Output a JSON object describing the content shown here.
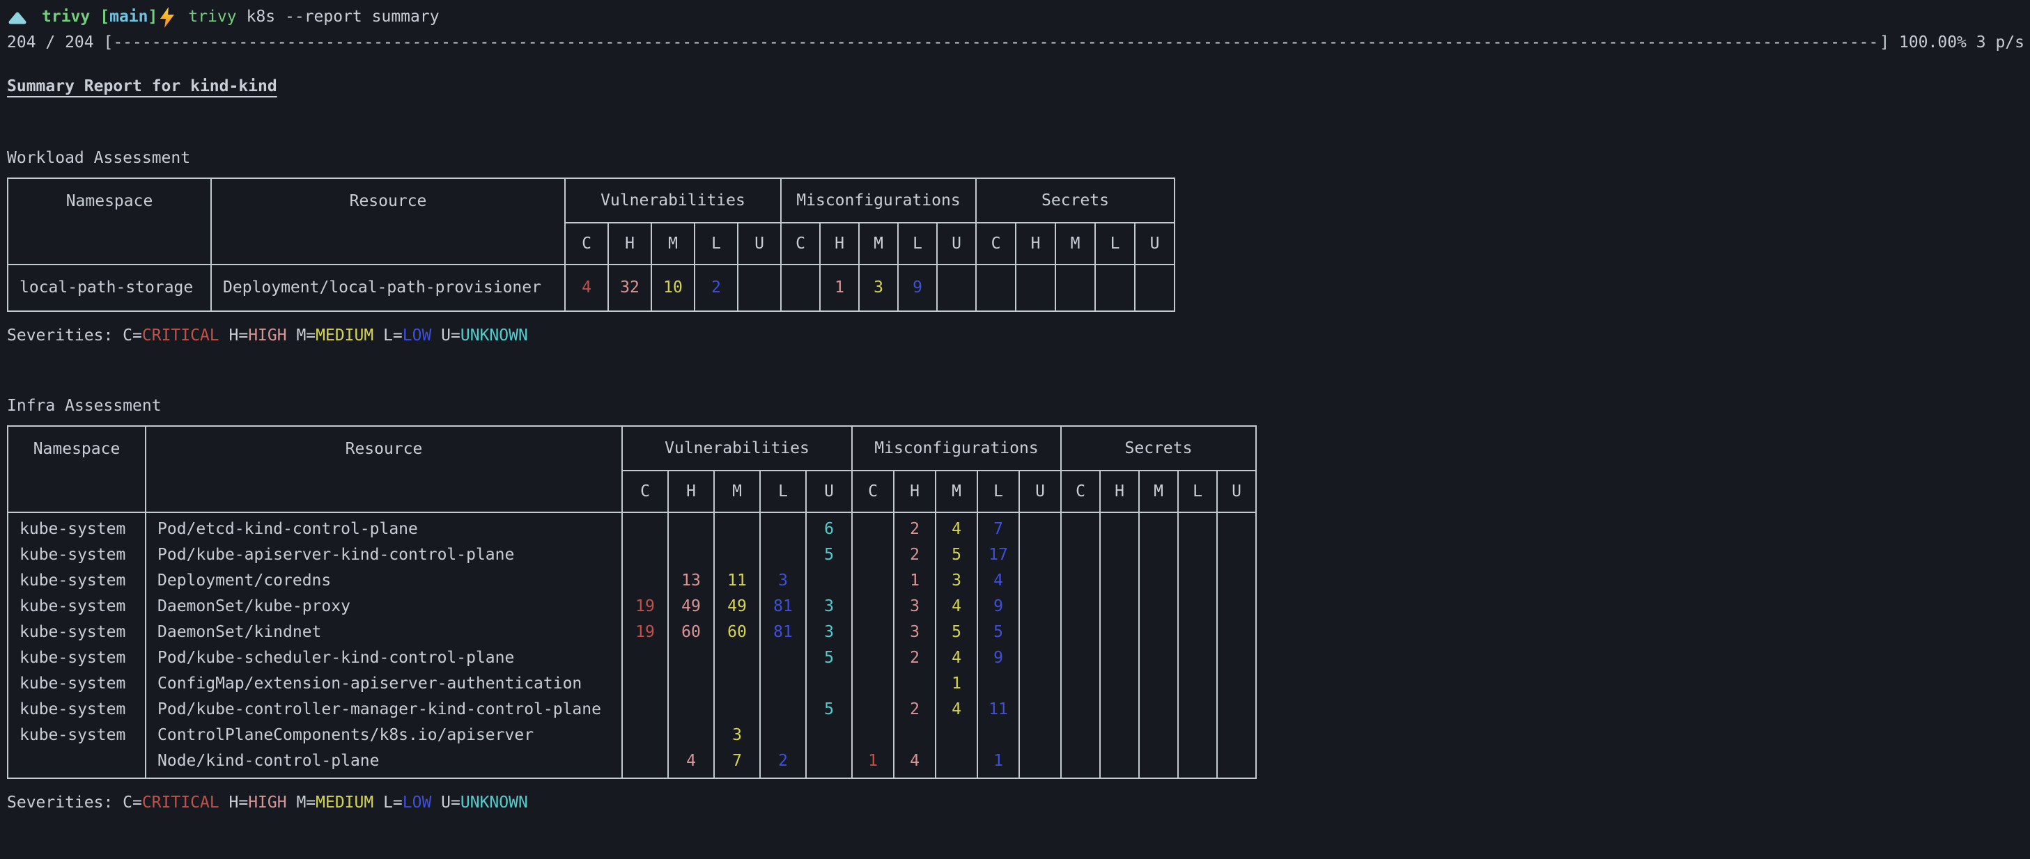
{
  "colors": {
    "background": "#16191f",
    "foreground": "#c9ced6",
    "table_border": "#c3c9d1",
    "critical": "#c25148",
    "high": "#d99493",
    "medium": "#d5d452",
    "low": "#3e4fd8",
    "unknown": "#54cbcd",
    "prompt_green": "#74cf7d",
    "prompt_cyan": "#6fc3e2",
    "triangle_cyan": "#8fd3e0",
    "bolt_yellow": "#fdd437",
    "bolt_orange": "#f08c1d"
  },
  "prompt": {
    "triangle_icon": "triangle-up",
    "directory": "trivy",
    "branch_open": "[",
    "branch": "main",
    "branch_close": "]",
    "bolt_icon": "lightning-bolt",
    "command": "trivy",
    "arguments": "k8s --report summary"
  },
  "progress": {
    "prefix": "204 / 204 [",
    "bar": "------------------------------------------------------------------------------------------------------------------------------------------------------------------------------------------------------------------------------------------------------------------------------------------------------------",
    "suffix": "] 100.00% 3 p/s"
  },
  "report_title": "Summary Report for kind-kind",
  "legend": {
    "prefix": "Severities: ",
    "items": [
      {
        "key": "C=",
        "label": "CRITICAL",
        "severity": "critical"
      },
      {
        "key": "H=",
        "label": "HIGH",
        "severity": "high"
      },
      {
        "key": "M=",
        "label": "MEDIUM",
        "severity": "medium"
      },
      {
        "key": "L=",
        "label": "LOW",
        "severity": "low"
      },
      {
        "key": "U=",
        "label": "UNKNOWN",
        "severity": "unknown"
      }
    ]
  },
  "severity_columns": [
    "C",
    "H",
    "M",
    "L",
    "U"
  ],
  "groups": [
    "Vulnerabilities",
    "Misconfigurations",
    "Secrets"
  ],
  "tables": [
    {
      "id": "workload",
      "label": "Workload Assessment",
      "columns": [
        "Namespace",
        "Resource"
      ],
      "rows": [
        {
          "namespace": "local-path-storage",
          "resource": "Deployment/local-path-provisioner",
          "vulnerabilities": {
            "C": "4",
            "H": "32",
            "M": "10",
            "L": "2",
            "U": ""
          },
          "misconfigurations": {
            "C": "",
            "H": "1",
            "M": "3",
            "L": "9",
            "U": ""
          },
          "secrets": {
            "C": "",
            "H": "",
            "M": "",
            "L": "",
            "U": ""
          }
        }
      ]
    },
    {
      "id": "infra",
      "label": "Infra Assessment",
      "columns": [
        "Namespace",
        "Resource"
      ],
      "rows": [
        {
          "namespace": "kube-system",
          "resource": "Pod/etcd-kind-control-plane",
          "vulnerabilities": {
            "C": "",
            "H": "",
            "M": "",
            "L": "",
            "U": "6"
          },
          "misconfigurations": {
            "C": "",
            "H": "2",
            "M": "4",
            "L": "7",
            "U": ""
          },
          "secrets": {
            "C": "",
            "H": "",
            "M": "",
            "L": "",
            "U": ""
          }
        },
        {
          "namespace": "kube-system",
          "resource": "Pod/kube-apiserver-kind-control-plane",
          "vulnerabilities": {
            "C": "",
            "H": "",
            "M": "",
            "L": "",
            "U": "5"
          },
          "misconfigurations": {
            "C": "",
            "H": "2",
            "M": "5",
            "L": "17",
            "U": ""
          },
          "secrets": {
            "C": "",
            "H": "",
            "M": "",
            "L": "",
            "U": ""
          }
        },
        {
          "namespace": "kube-system",
          "resource": "Deployment/coredns",
          "vulnerabilities": {
            "C": "",
            "H": "13",
            "M": "11",
            "L": "3",
            "U": ""
          },
          "misconfigurations": {
            "C": "",
            "H": "1",
            "M": "3",
            "L": "4",
            "U": ""
          },
          "secrets": {
            "C": "",
            "H": "",
            "M": "",
            "L": "",
            "U": ""
          }
        },
        {
          "namespace": "kube-system",
          "resource": "DaemonSet/kube-proxy",
          "vulnerabilities": {
            "C": "19",
            "H": "49",
            "M": "49",
            "L": "81",
            "U": "3"
          },
          "misconfigurations": {
            "C": "",
            "H": "3",
            "M": "4",
            "L": "9",
            "U": ""
          },
          "secrets": {
            "C": "",
            "H": "",
            "M": "",
            "L": "",
            "U": ""
          }
        },
        {
          "namespace": "kube-system",
          "resource": "DaemonSet/kindnet",
          "vulnerabilities": {
            "C": "19",
            "H": "60",
            "M": "60",
            "L": "81",
            "U": "3"
          },
          "misconfigurations": {
            "C": "",
            "H": "3",
            "M": "5",
            "L": "5",
            "U": ""
          },
          "secrets": {
            "C": "",
            "H": "",
            "M": "",
            "L": "",
            "U": ""
          }
        },
        {
          "namespace": "kube-system",
          "resource": "Pod/kube-scheduler-kind-control-plane",
          "vulnerabilities": {
            "C": "",
            "H": "",
            "M": "",
            "L": "",
            "U": "5"
          },
          "misconfigurations": {
            "C": "",
            "H": "2",
            "M": "4",
            "L": "9",
            "U": ""
          },
          "secrets": {
            "C": "",
            "H": "",
            "M": "",
            "L": "",
            "U": ""
          }
        },
        {
          "namespace": "kube-system",
          "resource": "ConfigMap/extension-apiserver-authentication",
          "vulnerabilities": {
            "C": "",
            "H": "",
            "M": "",
            "L": "",
            "U": ""
          },
          "misconfigurations": {
            "C": "",
            "H": "",
            "M": "1",
            "L": "",
            "U": ""
          },
          "secrets": {
            "C": "",
            "H": "",
            "M": "",
            "L": "",
            "U": ""
          }
        },
        {
          "namespace": "kube-system",
          "resource": "Pod/kube-controller-manager-kind-control-plane",
          "vulnerabilities": {
            "C": "",
            "H": "",
            "M": "",
            "L": "",
            "U": "5"
          },
          "misconfigurations": {
            "C": "",
            "H": "2",
            "M": "4",
            "L": "11",
            "U": ""
          },
          "secrets": {
            "C": "",
            "H": "",
            "M": "",
            "L": "",
            "U": ""
          }
        },
        {
          "namespace": "kube-system",
          "resource": "ControlPlaneComponents/k8s.io/apiserver",
          "vulnerabilities": {
            "C": "",
            "H": "",
            "M": "3",
            "L": "",
            "U": ""
          },
          "misconfigurations": {
            "C": "",
            "H": "",
            "M": "",
            "L": "",
            "U": ""
          },
          "secrets": {
            "C": "",
            "H": "",
            "M": "",
            "L": "",
            "U": ""
          }
        },
        {
          "namespace": "",
          "resource": "Node/kind-control-plane",
          "vulnerabilities": {
            "C": "",
            "H": "4",
            "M": "7",
            "L": "2",
            "U": ""
          },
          "misconfigurations": {
            "C": "1",
            "H": "4",
            "M": "",
            "L": "1",
            "U": ""
          },
          "secrets": {
            "C": "",
            "H": "",
            "M": "",
            "L": "",
            "U": ""
          }
        }
      ]
    }
  ]
}
